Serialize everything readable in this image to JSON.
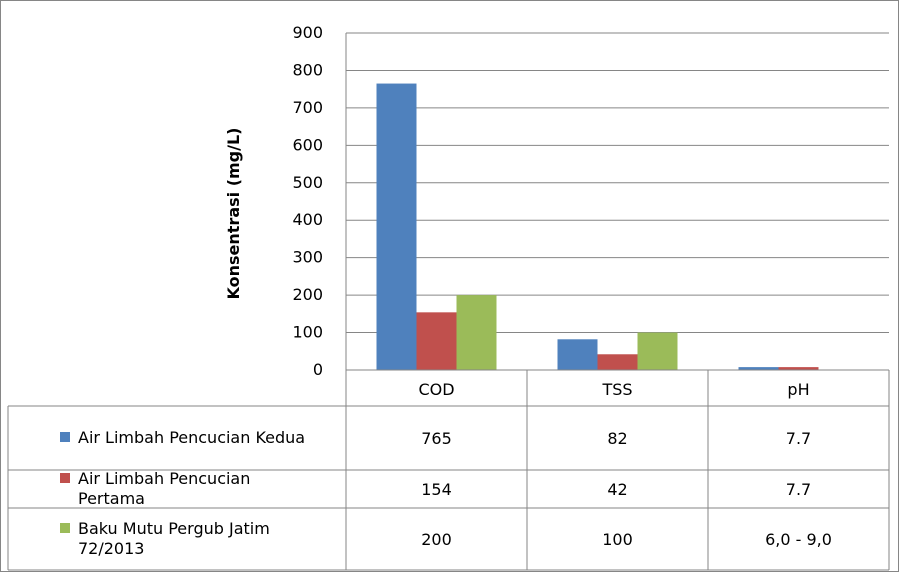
{
  "chart_data": {
    "type": "bar",
    "title": "",
    "xlabel": "",
    "ylabel": "Konsentrasi  (mg/L)",
    "ylim": [
      0,
      900
    ],
    "yticks": [
      0,
      100,
      200,
      300,
      400,
      500,
      600,
      700,
      800,
      900
    ],
    "grid": true,
    "legend": "data-table",
    "categories": [
      "COD",
      "TSS",
      "pH"
    ],
    "series": [
      {
        "name": "Air Limbah Pencucian Kedua",
        "color": "#4F81BD",
        "values": [
          765,
          82,
          7.7
        ],
        "table_values": [
          "765",
          "82",
          "7.7"
        ],
        "plotted": [
          true,
          true,
          true
        ]
      },
      {
        "name": "Air Limbah Pencucian Pertama",
        "color": "#C0504D",
        "values": [
          154,
          42,
          7.7
        ],
        "table_values": [
          "154",
          "42",
          "7.7"
        ],
        "plotted": [
          true,
          true,
          true
        ]
      },
      {
        "name": "Baku Mutu Pergub Jatim 72/2013",
        "color": "#9BBB59",
        "values": [
          200,
          100,
          null
        ],
        "table_values": [
          "200",
          "100",
          "6,0 - 9,0"
        ],
        "plotted": [
          true,
          true,
          false
        ]
      }
    ]
  }
}
